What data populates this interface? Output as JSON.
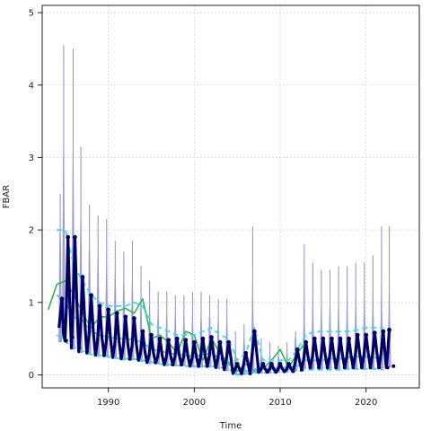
{
  "chart_data": {
    "type": "line",
    "title": "",
    "xlabel": "Time",
    "ylabel": "FBAR",
    "xlim": [
      1982.3,
      2026.2
    ],
    "ylim": [
      -0.18,
      5.1
    ],
    "xticks": [
      1990,
      2000,
      2010,
      2020
    ],
    "yticks": [
      0,
      1,
      2,
      3,
      4,
      5
    ],
    "grid": true,
    "legend": "none",
    "colors": {
      "band": "#9999cc",
      "seasonal": "#000066",
      "green": "#2cb84a",
      "cyan_solid": "#33ccee",
      "cyan_dashed": "#33ddee",
      "grid": "#c8c8c8",
      "frame": "#222222"
    },
    "peaks": [
      {
        "x": 1984.6,
        "median": 1.05,
        "high": 1.45,
        "low": 0.45
      },
      {
        "x": 1985.3,
        "median": 1.9,
        "high": 2.0,
        "low": 0.5
      },
      {
        "x": 1986.1,
        "median": 1.9,
        "high": 1.95,
        "low": 0.35
      },
      {
        "x": 1987.0,
        "median": 1.35,
        "high": 1.45,
        "low": 0.3
      },
      {
        "x": 1988.0,
        "median": 1.1,
        "high": 1.25,
        "low": 0.28
      },
      {
        "x": 1989.0,
        "median": 0.95,
        "high": 1.1,
        "low": 0.25
      },
      {
        "x": 1990.0,
        "median": 0.9,
        "high": 1.0,
        "low": 0.25
      },
      {
        "x": 1991.0,
        "median": 0.85,
        "high": 0.95,
        "low": 0.22
      },
      {
        "x": 1992.0,
        "median": 0.8,
        "high": 0.9,
        "low": 0.2
      },
      {
        "x": 1993.0,
        "median": 0.78,
        "high": 0.85,
        "low": 0.2
      },
      {
        "x": 1994.0,
        "median": 0.6,
        "high": 0.7,
        "low": 0.18
      },
      {
        "x": 1995.0,
        "median": 0.55,
        "high": 0.62,
        "low": 0.15
      },
      {
        "x": 1996.0,
        "median": 0.5,
        "high": 0.58,
        "low": 0.15
      },
      {
        "x": 1997.0,
        "median": 0.48,
        "high": 0.55,
        "low": 0.12
      },
      {
        "x": 1998.0,
        "median": 0.5,
        "high": 0.56,
        "low": 0.12
      },
      {
        "x": 1999.0,
        "median": 0.48,
        "high": 0.54,
        "low": 0.12
      },
      {
        "x": 2000.0,
        "median": 0.45,
        "high": 0.52,
        "low": 0.1
      },
      {
        "x": 2001.0,
        "median": 0.5,
        "high": 0.56,
        "low": 0.1
      },
      {
        "x": 2002.0,
        "median": 0.52,
        "high": 0.58,
        "low": 0.1
      },
      {
        "x": 2003.0,
        "median": 0.45,
        "high": 0.5,
        "low": 0.08
      },
      {
        "x": 2004.0,
        "median": 0.45,
        "high": 0.5,
        "low": 0.05
      },
      {
        "x": 2005.0,
        "median": 0.15,
        "high": 0.2,
        "low": 0.0
      },
      {
        "x": 2006.0,
        "median": 0.3,
        "high": 0.35,
        "low": 0.0
      },
      {
        "x": 2007.0,
        "median": 0.6,
        "high": 0.68,
        "low": 0.02
      },
      {
        "x": 2008.0,
        "median": 0.15,
        "high": 0.18,
        "low": 0.02
      },
      {
        "x": 2009.0,
        "median": 0.15,
        "high": 0.18,
        "low": 0.02
      },
      {
        "x": 2010.0,
        "median": 0.15,
        "high": 0.18,
        "low": 0.03
      },
      {
        "x": 2011.0,
        "median": 0.15,
        "high": 0.2,
        "low": 0.03
      },
      {
        "x": 2012.0,
        "median": 0.35,
        "high": 0.4,
        "low": 0.05
      },
      {
        "x": 2013.0,
        "median": 0.45,
        "high": 0.55,
        "low": 0.08
      },
      {
        "x": 2014.0,
        "median": 0.5,
        "high": 0.6,
        "low": 0.08
      },
      {
        "x": 2015.0,
        "median": 0.5,
        "high": 0.6,
        "low": 0.08
      },
      {
        "x": 2016.0,
        "median": 0.5,
        "high": 0.6,
        "low": 0.08
      },
      {
        "x": 2017.0,
        "median": 0.5,
        "high": 0.6,
        "low": 0.08
      },
      {
        "x": 2018.0,
        "median": 0.5,
        "high": 0.62,
        "low": 0.08
      },
      {
        "x": 2019.0,
        "median": 0.55,
        "high": 0.62,
        "low": 0.08
      },
      {
        "x": 2020.0,
        "median": 0.55,
        "high": 0.65,
        "low": 0.08
      },
      {
        "x": 2021.0,
        "median": 0.58,
        "high": 0.65,
        "low": 0.08
      },
      {
        "x": 2022.0,
        "median": 0.6,
        "high": 0.66,
        "low": 0.08
      },
      {
        "x": 2022.7,
        "median": 0.62,
        "high": 0.66,
        "low": 0.1
      }
    ],
    "spikes": [
      {
        "x": 1984.4,
        "top": 2.5
      },
      {
        "x": 1984.8,
        "top": 4.55
      },
      {
        "x": 1985.9,
        "top": 4.5
      },
      {
        "x": 1986.8,
        "top": 3.15
      },
      {
        "x": 1987.8,
        "top": 2.35
      },
      {
        "x": 1988.8,
        "top": 2.2
      },
      {
        "x": 1989.8,
        "top": 2.15
      },
      {
        "x": 1990.8,
        "top": 1.85
      },
      {
        "x": 1991.8,
        "top": 1.7
      },
      {
        "x": 1992.8,
        "top": 1.85
      },
      {
        "x": 1993.8,
        "top": 1.5
      },
      {
        "x": 1994.8,
        "top": 1.3
      },
      {
        "x": 1995.8,
        "top": 1.15
      },
      {
        "x": 1996.8,
        "top": 1.15
      },
      {
        "x": 1997.8,
        "top": 1.1
      },
      {
        "x": 1998.8,
        "top": 1.1
      },
      {
        "x": 1999.8,
        "top": 1.15
      },
      {
        "x": 2000.8,
        "top": 1.15
      },
      {
        "x": 2001.8,
        "top": 1.1
      },
      {
        "x": 2002.8,
        "top": 1.05
      },
      {
        "x": 2003.8,
        "top": 1.05
      },
      {
        "x": 2004.8,
        "top": 0.6
      },
      {
        "x": 2005.8,
        "top": 0.7
      },
      {
        "x": 2006.8,
        "top": 2.05
      },
      {
        "x": 2007.8,
        "top": 0.5
      },
      {
        "x": 2008.8,
        "top": 0.45
      },
      {
        "x": 2009.8,
        "top": 0.4
      },
      {
        "x": 2010.8,
        "top": 0.45
      },
      {
        "x": 2011.8,
        "top": 0.6
      },
      {
        "x": 2012.8,
        "top": 1.8
      },
      {
        "x": 2013.8,
        "top": 1.55
      },
      {
        "x": 2014.8,
        "top": 1.45
      },
      {
        "x": 2015.8,
        "top": 1.45
      },
      {
        "x": 2016.8,
        "top": 1.5
      },
      {
        "x": 2017.8,
        "top": 1.5
      },
      {
        "x": 2018.8,
        "top": 1.55
      },
      {
        "x": 2019.8,
        "top": 1.55
      },
      {
        "x": 2020.8,
        "top": 1.65
      },
      {
        "x": 2021.8,
        "top": 2.05
      },
      {
        "x": 2022.7,
        "top": 2.05
      }
    ],
    "series": [
      {
        "style": "green-solid",
        "x": [
          1983.0,
          1984.0,
          1985.0,
          1986.0,
          1987.0,
          1988.0,
          1989.0,
          1990.0,
          1991.0,
          1992.0,
          1993.0,
          1994.0,
          1995.0,
          1996.0,
          1997.0,
          1998.0,
          1999.0,
          2000.0,
          2001.0,
          2002.0,
          2003.0,
          2004.0,
          2005.0,
          2006.0,
          2007.0,
          2008.0,
          2009.0,
          2010.0,
          2011.0,
          2012.0,
          2013.0
        ],
        "y": [
          0.9,
          1.25,
          1.3,
          1.1,
          0.85,
          0.65,
          0.8,
          0.8,
          0.88,
          0.92,
          0.85,
          1.05,
          0.5,
          0.55,
          0.45,
          0.3,
          0.6,
          0.55,
          0.2,
          0.5,
          0.3,
          0.15,
          0.05,
          0.15,
          0.05,
          0.08,
          0.2,
          0.35,
          0.1,
          0.3,
          0.45
        ]
      },
      {
        "style": "cyan-solid",
        "x": [
          1984.0,
          1985.0,
          1986.0,
          1987.0,
          1988.0,
          1989.0,
          1990.0,
          1991.0,
          1992.0,
          1993.0,
          1994.0,
          1995.0,
          1996.0,
          1997.0,
          1998.0,
          1999.0,
          2000.0,
          2001.0,
          2002.0,
          2003.0,
          2004.0,
          2005.0,
          2006.0,
          2007.0,
          2008.0,
          2009.0,
          2010.0,
          2011.0,
          2012.0,
          2013.0,
          2014.0,
          2015.0,
          2016.0,
          2017.0,
          2018.0,
          2019.0,
          2020.0,
          2021.0,
          2022.0
        ],
        "y": [
          1.1,
          1.0,
          0.8,
          0.75,
          0.6,
          0.55,
          0.52,
          0.5,
          0.5,
          0.48,
          0.45,
          0.35,
          0.33,
          0.3,
          0.28,
          0.27,
          0.25,
          0.28,
          0.3,
          0.22,
          0.18,
          0.0,
          0.05,
          0.08,
          0.08,
          0.08,
          0.1,
          0.1,
          0.12,
          0.2,
          0.2,
          0.2,
          0.22,
          0.22,
          0.24,
          0.25,
          0.25,
          0.24,
          0.22
        ]
      },
      {
        "style": "cyan-dashed-upper",
        "x": [
          1984.0,
          1985.0,
          1986.0,
          1987.0,
          1988.0,
          1989.0,
          1990.0,
          1991.0,
          1992.0,
          1993.0,
          1994.0,
          1995.0,
          1996.0,
          1997.0,
          1998.0,
          1999.0,
          2000.0,
          2001.0,
          2002.0,
          2003.0,
          2004.0,
          2005.0,
          2006.0,
          2007.0,
          2008.0,
          2009.0,
          2010.0,
          2011.0,
          2012.0,
          2013.0,
          2014.0,
          2015.0,
          2016.0,
          2017.0,
          2018.0,
          2019.0,
          2020.0,
          2021.0,
          2022.0
        ],
        "y": [
          2.0,
          2.0,
          1.5,
          1.3,
          1.1,
          1.0,
          0.95,
          0.95,
          0.95,
          1.0,
          0.95,
          0.7,
          0.65,
          0.6,
          0.55,
          0.55,
          0.55,
          0.6,
          0.65,
          0.55,
          0.5,
          0.2,
          0.3,
          0.65,
          0.2,
          0.2,
          0.2,
          0.2,
          0.35,
          0.55,
          0.6,
          0.6,
          0.6,
          0.6,
          0.6,
          0.62,
          0.65,
          0.65,
          0.65
        ]
      },
      {
        "style": "cyan-dashed-lower",
        "x": [
          1984.0,
          1985.0,
          1986.0,
          1987.0,
          1988.0,
          1989.0,
          1990.0,
          1991.0,
          1992.0,
          1993.0,
          1994.0,
          1995.0,
          1996.0,
          1997.0,
          1998.0,
          1999.0,
          2000.0,
          2001.0,
          2002.0,
          2003.0,
          2004.0,
          2005.0,
          2006.0,
          2007.0,
          2008.0,
          2009.0,
          2010.0,
          2011.0,
          2012.0,
          2013.0,
          2014.0,
          2015.0,
          2016.0,
          2017.0,
          2018.0,
          2019.0,
          2020.0,
          2021.0,
          2022.0
        ],
        "y": [
          0.55,
          0.45,
          0.38,
          0.33,
          0.28,
          0.27,
          0.25,
          0.23,
          0.22,
          0.22,
          0.2,
          0.18,
          0.15,
          0.14,
          0.13,
          0.12,
          0.12,
          0.12,
          0.12,
          0.1,
          0.08,
          0.0,
          0.02,
          0.03,
          0.03,
          0.03,
          0.04,
          0.04,
          0.05,
          0.07,
          0.07,
          0.07,
          0.07,
          0.07,
          0.08,
          0.08,
          0.08,
          0.08,
          0.07
        ]
      }
    ]
  }
}
